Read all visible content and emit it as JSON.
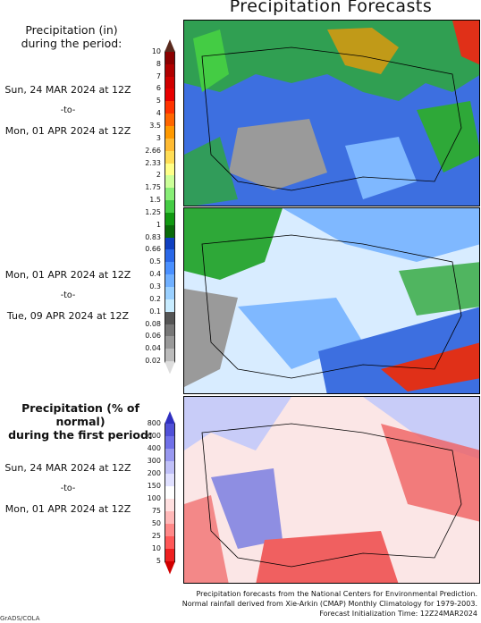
{
  "title": "Precipitation Forecasts",
  "panel1": {
    "header": [
      "Precipitation (in)",
      "during the period:"
    ],
    "period_start": "Sun, 24 MAR 2024 at 12Z",
    "period_sep": "-to-",
    "period_end": "Mon, 01 APR 2024 at 12Z"
  },
  "panel2": {
    "period_start": "Mon, 01 APR 2024 at 12Z",
    "period_sep": "-to-",
    "period_end": "Tue, 09 APR 2024 at 12Z"
  },
  "panel3": {
    "header": [
      "Precipitation (% of normal)",
      "during the first period:"
    ],
    "period_start": "Sun, 24 MAR 2024 at 12Z",
    "period_sep": "-to-",
    "period_end": "Mon, 01 APR 2024 at 12Z"
  },
  "precip_scale": {
    "labels": [
      "10",
      "8",
      "7",
      "6",
      "5",
      "4",
      "3.5",
      "3",
      "2.66",
      "2.33",
      "2",
      "1.75",
      "1.5",
      "1.25",
      "1",
      "0.83",
      "0.66",
      "0.5",
      "0.4",
      "0.3",
      "0.2",
      "0.1",
      "0.08",
      "0.06",
      "0.04",
      "0.02"
    ],
    "colors": [
      "#5a2a1e",
      "#8b0000",
      "#b00000",
      "#d00000",
      "#e80000",
      "#ff3300",
      "#ff6600",
      "#ff9900",
      "#ffbb33",
      "#ffdd55",
      "#ffff88",
      "#ccff99",
      "#88ee77",
      "#44cc44",
      "#119911",
      "#0a6a0a",
      "#1040c0",
      "#2a68e8",
      "#4a90ff",
      "#70b0ff",
      "#9ad0ff",
      "#c8ecff",
      "#555555",
      "#777777",
      "#999999",
      "#bbbbbb",
      "#dddddd"
    ]
  },
  "percent_scale": {
    "labels": [
      "800",
      "600",
      "400",
      "300",
      "200",
      "150",
      "100",
      "75",
      "50",
      "25",
      "10",
      "5"
    ],
    "colors": [
      "#3030c0",
      "#5050d8",
      "#7070e8",
      "#9898f0",
      "#c0c0f8",
      "#e0e0ff",
      "#ffffff",
      "#ffe0e0",
      "#ffb8b8",
      "#ff8888",
      "#ff5858",
      "#ee2020",
      "#d00000"
    ]
  },
  "footer": [
    "Precipitation forecasts from the National Centers for Environmental Prediction.",
    "Normal rainfall derived from Xie-Arkin (CMAP) Monthly Climatology for 1979-2003.",
    "Forecast Initialization Time: 12Z24MAR2024"
  ],
  "credit": "GrADS/COLA",
  "colors": {
    "ocean_blue": "#3d6fe0",
    "land_light": "#d8ecff",
    "green": "#2ea838",
    "gray": "#9a9a9a",
    "red_high": "#e03018",
    "pct_red": "#f06060",
    "pct_blue": "#6a70e0"
  }
}
